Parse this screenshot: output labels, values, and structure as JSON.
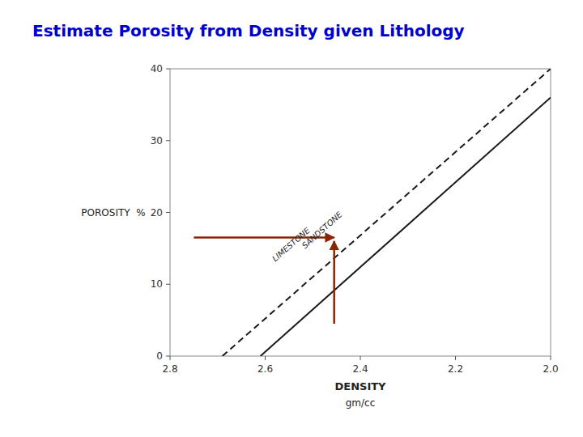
{
  "chart_data": {
    "type": "line",
    "title": "Estimate Porosity from Density given Lithology",
    "title_color": "#0000CC",
    "xlabel": "DENSITY",
    "xlabel2": "gm/cc",
    "ylabel": "POROSITY  %",
    "xlim": [
      2.8,
      2.0
    ],
    "ylim": [
      0,
      40
    ],
    "xticks": [
      2.8,
      2.6,
      2.4,
      2.2,
      {
        "value": 2.0,
        "label": "2.0"
      }
    ],
    "yticks": [
      0,
      10,
      20,
      30,
      40
    ],
    "grid": false,
    "series": [
      {
        "name": "LIMESTONE",
        "color": "#1a1a1a",
        "line_style": "dashed",
        "x": [
          2.69,
          2.0
        ],
        "values": [
          0.0,
          40.0
        ],
        "label_at": [
          2.545,
          15.5
        ]
      },
      {
        "name": "SANDSTONE",
        "color": "#1a1a1a",
        "line_style": "solid",
        "x": [
          2.61,
          2.0
        ],
        "values": [
          0.0,
          36.0
        ],
        "label_at": [
          2.48,
          17.5
        ]
      }
    ],
    "arrows": [
      {
        "x": [
          2.75,
          2.455
        ],
        "y": [
          16.5,
          16.5
        ],
        "color": "#8B2500"
      },
      {
        "x": [
          2.455,
          2.455
        ],
        "y": [
          4.5,
          16.0
        ],
        "color": "#8B2500"
      }
    ]
  }
}
